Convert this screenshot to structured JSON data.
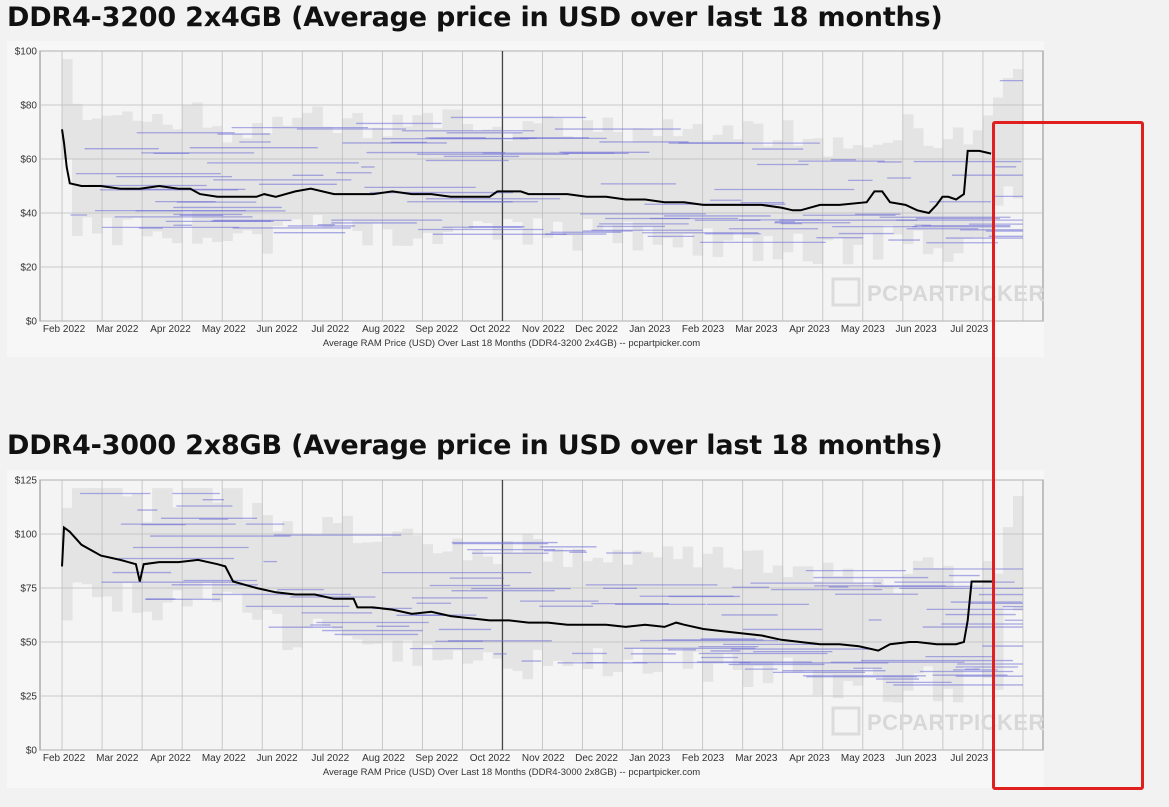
{
  "titles": {
    "chart1": "DDR4-3200 2x4GB (Average price in USD over last 18 months)",
    "chart2": "DDR4-3000 2x8GB (Average price in USD over last 18 months)"
  },
  "colors": {
    "average_line": "#000000",
    "retailer_lines": "#6b6bd6",
    "range_fill": "#e4e4e4",
    "grid": "#bdbdbd",
    "highlight": "#e01f1f"
  },
  "watermark": "PCPARTPICKER",
  "chart_data": [
    {
      "type": "line",
      "title": "DDR4-3200 2x4GB (Average price in USD over last 18 months)",
      "caption": "Average RAM Price (USD) Over Last 18 Months (DDR4-3200 2x4GB) -- pcpartpicker.com",
      "x_labels": [
        "Feb 2022",
        "Mar 2022",
        "Apr 2022",
        "May 2022",
        "Jun 2022",
        "Jul 2022",
        "Aug 2022",
        "Sep 2022",
        "Oct 2022",
        "Nov 2022",
        "Dec 2022",
        "Jan 2023",
        "Feb 2023",
        "Mar 2023",
        "Apr 2023",
        "May 2023",
        "Jun 2023",
        "Jul 2023"
      ],
      "y_ticks": [
        "$0",
        "$20",
        "$40",
        "$60",
        "$80",
        "$100"
      ],
      "ylim": [
        0,
        100
      ],
      "grid": true,
      "series": [
        {
          "name": "Average price",
          "points": [
            [
              0,
              71
            ],
            [
              0.05,
              66
            ],
            [
              0.12,
              57
            ],
            [
              0.2,
              51
            ],
            [
              0.5,
              50
            ],
            [
              1,
              50
            ],
            [
              1.5,
              49
            ],
            [
              2,
              49
            ],
            [
              2.5,
              50
            ],
            [
              3,
              49
            ],
            [
              3.3,
              49
            ],
            [
              3.55,
              47
            ],
            [
              4,
              46
            ],
            [
              4.5,
              46
            ],
            [
              5,
              46
            ],
            [
              5.2,
              47
            ],
            [
              5.5,
              46
            ],
            [
              6,
              48
            ],
            [
              6.4,
              49
            ],
            [
              7,
              47
            ],
            [
              7.5,
              47
            ],
            [
              8,
              47
            ],
            [
              8.5,
              48
            ],
            [
              9,
              47
            ],
            [
              9.5,
              47
            ],
            [
              10,
              46
            ],
            [
              10.5,
              46
            ],
            [
              11,
              46
            ],
            [
              11.2,
              48
            ],
            [
              11.8,
              48
            ],
            [
              12,
              47
            ],
            [
              12.5,
              47
            ],
            [
              13,
              47
            ],
            [
              13.5,
              46
            ],
            [
              14,
              46
            ],
            [
              14.5,
              45
            ],
            [
              15,
              45
            ],
            [
              15.5,
              44
            ],
            [
              16,
              44
            ],
            [
              16.5,
              43
            ],
            [
              17,
              43
            ],
            [
              17.5,
              43
            ],
            [
              18,
              43
            ],
            [
              18.5,
              42
            ],
            [
              18.8,
              41
            ],
            [
              19,
              41
            ],
            [
              19.5,
              43
            ],
            [
              20,
              43
            ],
            [
              20.7,
              44
            ],
            [
              20.9,
              48
            ],
            [
              21.1,
              48
            ],
            [
              21.3,
              44
            ],
            [
              21.7,
              43
            ],
            [
              22,
              41
            ],
            [
              22.3,
              40
            ],
            [
              22.5,
              43
            ],
            [
              22.65,
              46
            ],
            [
              22.8,
              46
            ],
            [
              23,
              45
            ],
            [
              23.2,
              47
            ],
            [
              23.3,
              63
            ],
            [
              23.6,
              63
            ],
            [
              23.9,
              62
            ]
          ]
        }
      ]
    },
    {
      "type": "line",
      "title": "DDR4-3000 2x8GB (Average price in USD over last 18 months)",
      "caption": "Average RAM Price (USD) Over Last 18 Months (DDR4-3000 2x8GB) -- pcpartpicker.com",
      "x_labels": [
        "Feb 2022",
        "Mar 2022",
        "Apr 2022",
        "May 2022",
        "Jun 2022",
        "Jul 2022",
        "Aug 2022",
        "Sep 2022",
        "Oct 2022",
        "Nov 2022",
        "Dec 2022",
        "Jan 2023",
        "Feb 2023",
        "Mar 2023",
        "Apr 2023",
        "May 2023",
        "Jun 2023",
        "Jul 2023"
      ],
      "y_ticks": [
        "$0",
        "$25",
        "$50",
        "$75",
        "$100",
        "$125"
      ],
      "ylim": [
        0,
        125
      ],
      "grid": true,
      "series": [
        {
          "name": "Average price",
          "points": [
            [
              0,
              85
            ],
            [
              0.05,
              103
            ],
            [
              0.2,
              101
            ],
            [
              0.5,
              95
            ],
            [
              1,
              90
            ],
            [
              1.5,
              88
            ],
            [
              1.9,
              86
            ],
            [
              2.0,
              78
            ],
            [
              2.1,
              86
            ],
            [
              2.5,
              87
            ],
            [
              3,
              87
            ],
            [
              3.5,
              88
            ],
            [
              4,
              86
            ],
            [
              4.2,
              85
            ],
            [
              4.4,
              78
            ],
            [
              5,
              75
            ],
            [
              5.5,
              73
            ],
            [
              6,
              72
            ],
            [
              6.5,
              72
            ],
            [
              7,
              70
            ],
            [
              7.5,
              70
            ],
            [
              7.6,
              66
            ],
            [
              8,
              66
            ],
            [
              8.5,
              65
            ],
            [
              9,
              63
            ],
            [
              9.5,
              64
            ],
            [
              10,
              62
            ],
            [
              10.5,
              61
            ],
            [
              11,
              60
            ],
            [
              11.5,
              60
            ],
            [
              12,
              59
            ],
            [
              12.5,
              59
            ],
            [
              13,
              58
            ],
            [
              13.5,
              58
            ],
            [
              14,
              58
            ],
            [
              14.5,
              57
            ],
            [
              15,
              58
            ],
            [
              15.5,
              57
            ],
            [
              15.8,
              59
            ],
            [
              16,
              58
            ],
            [
              16.5,
              56
            ],
            [
              17,
              55
            ],
            [
              17.5,
              54
            ],
            [
              18,
              53
            ],
            [
              18.5,
              51
            ],
            [
              19,
              50
            ],
            [
              19.5,
              49
            ],
            [
              20,
              49
            ],
            [
              20.5,
              48
            ],
            [
              21,
              46
            ],
            [
              21.3,
              49
            ],
            [
              21.8,
              50
            ],
            [
              22,
              50
            ],
            [
              22.5,
              49
            ],
            [
              23,
              49
            ],
            [
              23.2,
              50
            ],
            [
              23.3,
              60
            ],
            [
              23.4,
              78
            ],
            [
              24,
              78
            ]
          ]
        }
      ]
    }
  ]
}
